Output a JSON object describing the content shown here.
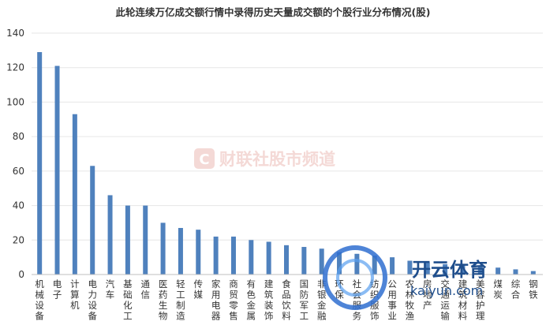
{
  "chart_data": {
    "type": "bar",
    "title": "此轮连续万亿成交额行情中录得历史天量成交额的个股行业分布情况(股)",
    "xlabel": "",
    "ylabel": "",
    "ylim": [
      0,
      140
    ],
    "yticks": [
      0,
      20,
      40,
      60,
      80,
      100,
      120,
      140
    ],
    "grid": true,
    "bar_color": "#4f81bd",
    "categories": [
      "机械设备",
      "电子",
      "计算机",
      "电力设备",
      "汽车",
      "基础化工",
      "通信",
      "医药生物",
      "轻工制造",
      "传媒",
      "家用电器",
      "商贸零售",
      "有色金属",
      "建筑装饰",
      "食品饮料",
      "国防军工",
      "非银金融",
      "环保",
      "社会服务",
      "纺织服饰",
      "公用事业",
      "农林牧渔",
      "房地产",
      "交通运输",
      "建筑材料",
      "美容护理",
      "煤炭",
      "综合",
      "钢铁"
    ],
    "values": [
      129,
      121,
      93,
      63,
      46,
      40,
      40,
      30,
      27,
      26,
      22,
      22,
      20,
      19,
      17,
      16,
      15,
      13,
      12,
      11,
      10,
      8,
      7,
      6,
      6,
      5,
      4,
      3,
      2
    ]
  },
  "watermarks": {
    "publisher": "财联社股市频道",
    "publisher_logo": "C",
    "site_brand": "开云体育",
    "site_url": "kaiyun.com"
  }
}
